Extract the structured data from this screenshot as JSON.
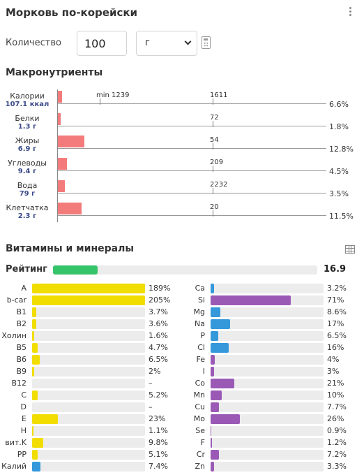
{
  "title": "Морковь по-корейски",
  "quantity": {
    "label": "Количество",
    "value": "100",
    "unit": "г"
  },
  "macros": {
    "heading": "Макронутриенты",
    "rows": [
      {
        "name": "Калории",
        "amount": "107.1 ккал",
        "norm_label": "1611",
        "min_label": "min 1239",
        "percent": "6.6%"
      },
      {
        "name": "Белки",
        "amount": "1.3 г",
        "norm_label": "72",
        "percent": "1.8%"
      },
      {
        "name": "Жиры",
        "amount": "6.9 г",
        "norm_label": "54",
        "percent": "12.8%"
      },
      {
        "name": "Углеводы",
        "amount": "9.4 г",
        "norm_label": "209",
        "percent": "4.5%"
      },
      {
        "name": "Вода",
        "amount": "79 г",
        "norm_label": "2232",
        "percent": "3.5%"
      },
      {
        "name": "Клетчатка",
        "amount": "2.3 г",
        "norm_label": "20",
        "percent": "11.5%"
      }
    ]
  },
  "vitamins": {
    "heading": "Витамины и минералы",
    "rating_label": "Рейтинг",
    "rating_value": "16.9",
    "colors": {
      "vitamin": "#f2dd00",
      "mineral": "#9b59b6",
      "accent": "#3498db",
      "rating": "#36c46a",
      "macro": "#f47b7b"
    },
    "left": [
      {
        "name": "A",
        "value": "189%",
        "fill": 1.0,
        "color": "vitamin"
      },
      {
        "name": "b-car",
        "value": "205%",
        "fill": 1.0,
        "color": "vitamin"
      },
      {
        "name": "B1",
        "value": "3.7%",
        "fill": 0.04,
        "color": "vitamin"
      },
      {
        "name": "B2",
        "value": "3.6%",
        "fill": 0.036,
        "color": "vitamin"
      },
      {
        "name": "Холин",
        "value": "1.6%",
        "fill": 0.016,
        "color": "vitamin"
      },
      {
        "name": "B5",
        "value": "4.7%",
        "fill": 0.047,
        "color": "vitamin"
      },
      {
        "name": "B6",
        "value": "6.5%",
        "fill": 0.065,
        "color": "vitamin"
      },
      {
        "name": "B9",
        "value": "2%",
        "fill": 0.02,
        "color": "vitamin"
      },
      {
        "name": "B12",
        "value": "–",
        "fill": 0,
        "color": "vitamin"
      },
      {
        "name": "C",
        "value": "5.2%",
        "fill": 0.052,
        "color": "vitamin"
      },
      {
        "name": "D",
        "value": "–",
        "fill": 0,
        "color": "vitamin"
      },
      {
        "name": "E",
        "value": "23%",
        "fill": 0.23,
        "color": "vitamin"
      },
      {
        "name": "H",
        "value": "1.1%",
        "fill": 0.011,
        "color": "vitamin"
      },
      {
        "name": "вит.K",
        "value": "9.8%",
        "fill": 0.098,
        "color": "vitamin"
      },
      {
        "name": "PP",
        "value": "5.1%",
        "fill": 0.051,
        "color": "vitamin"
      },
      {
        "name": "Калий",
        "value": "7.4%",
        "fill": 0.074,
        "color": "accent"
      }
    ],
    "right": [
      {
        "name": "Ca",
        "value": "3.2%",
        "fill": 0.032,
        "color": "accent"
      },
      {
        "name": "Si",
        "value": "71%",
        "fill": 0.71,
        "color": "mineral"
      },
      {
        "name": "Mg",
        "value": "8.6%",
        "fill": 0.086,
        "color": "accent"
      },
      {
        "name": "Na",
        "value": "17%",
        "fill": 0.17,
        "color": "accent"
      },
      {
        "name": "P",
        "value": "6.5%",
        "fill": 0.065,
        "color": "accent"
      },
      {
        "name": "Cl",
        "value": "16%",
        "fill": 0.16,
        "color": "accent"
      },
      {
        "name": "Fe",
        "value": "4%",
        "fill": 0.04,
        "color": "mineral"
      },
      {
        "name": "I",
        "value": "3%",
        "fill": 0.03,
        "color": "mineral"
      },
      {
        "name": "Co",
        "value": "21%",
        "fill": 0.21,
        "color": "mineral"
      },
      {
        "name": "Mn",
        "value": "10%",
        "fill": 0.1,
        "color": "mineral"
      },
      {
        "name": "Cu",
        "value": "7.7%",
        "fill": 0.077,
        "color": "mineral"
      },
      {
        "name": "Mo",
        "value": "26%",
        "fill": 0.26,
        "color": "mineral"
      },
      {
        "name": "Se",
        "value": "0.9%",
        "fill": 0.009,
        "color": "mineral"
      },
      {
        "name": "F",
        "value": "1.2%",
        "fill": 0.012,
        "color": "mineral"
      },
      {
        "name": "Cr",
        "value": "7.2%",
        "fill": 0.072,
        "color": "mineral"
      },
      {
        "name": "Zn",
        "value": "3.3%",
        "fill": 0.033,
        "color": "mineral"
      }
    ]
  }
}
